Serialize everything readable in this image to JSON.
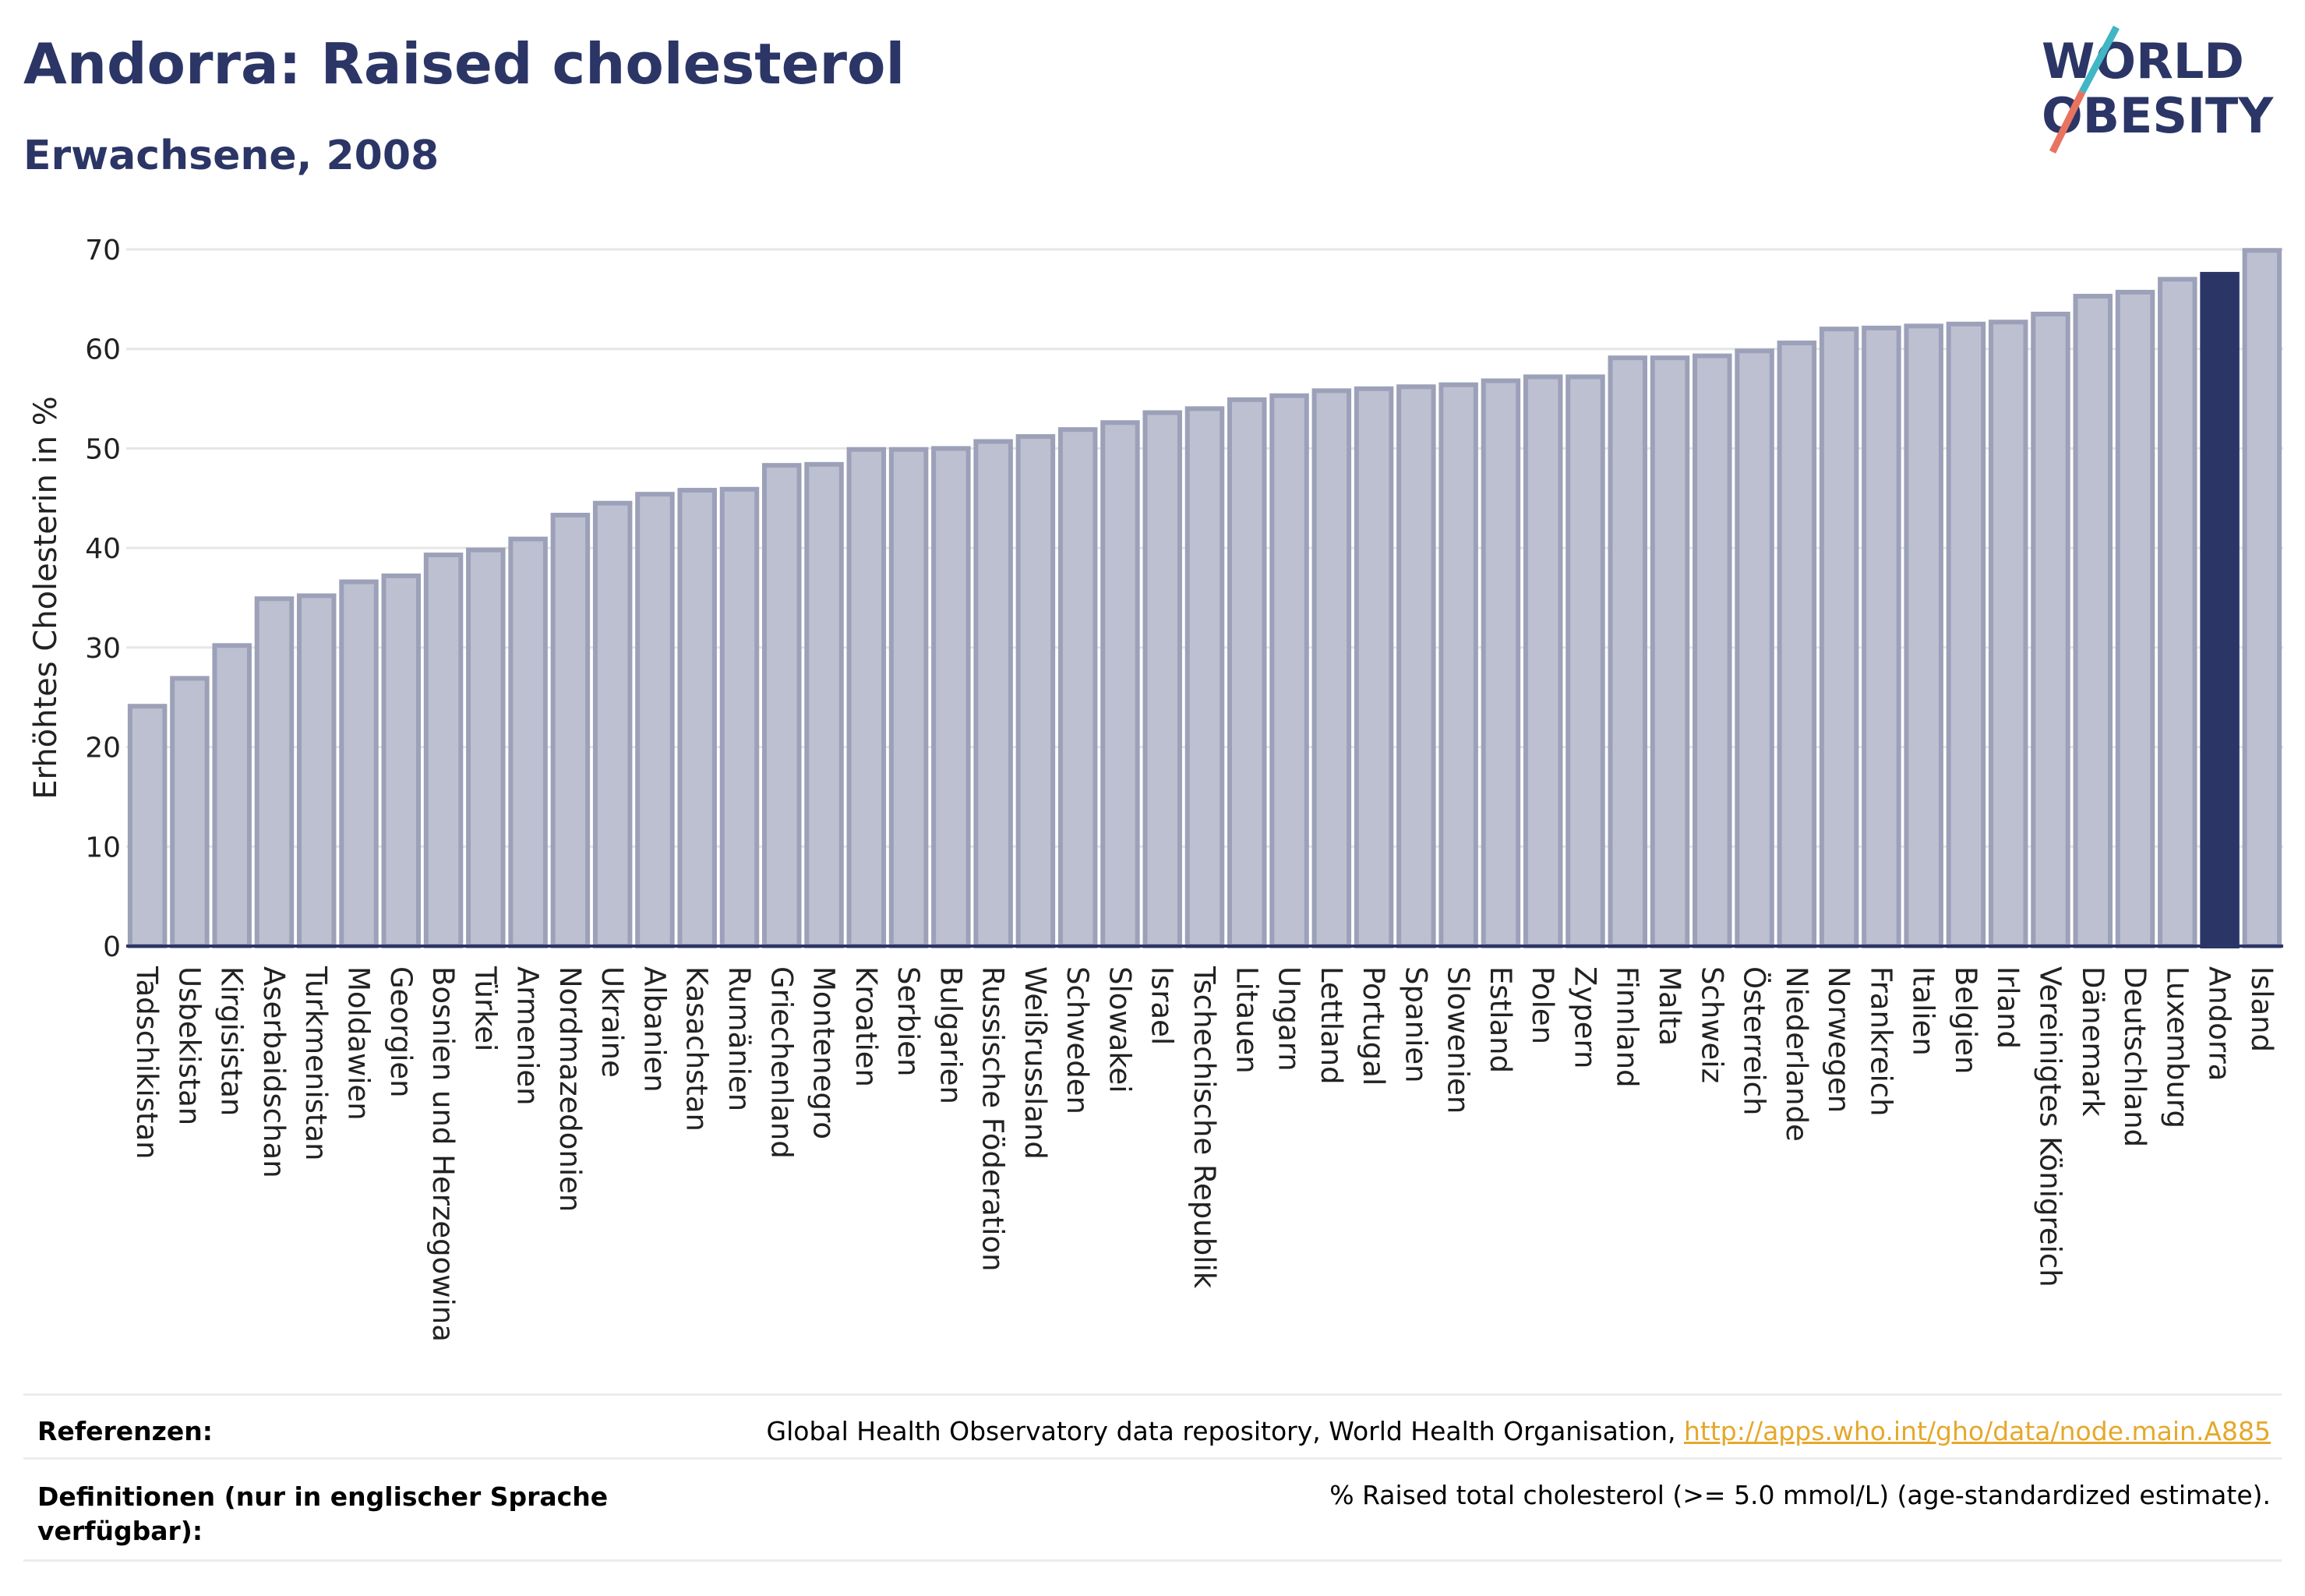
{
  "header": {
    "title": "Andorra: Raised cholesterol",
    "subtitle": "Erwachsene, 2008",
    "logo_line1": "WORLD",
    "logo_line2": "OBESITY"
  },
  "colors": {
    "title": "#2b3566",
    "bar": "#bdc0d0",
    "bar_border": "#9ca1b9",
    "highlight": "#2b3566",
    "link": "#e5a82b",
    "logo_teal": "#41b6c4",
    "logo_coral": "#e8735f"
  },
  "chart_data": {
    "type": "bar",
    "ylabel": "Erhöhtes Cholesterin in %",
    "ylim": [
      0,
      70
    ],
    "yticks": [
      0,
      10,
      20,
      30,
      40,
      50,
      60,
      70
    ],
    "grid": true,
    "highlight": "Andorra",
    "categories": [
      "Tadschikistan",
      "Usbekistan",
      "Kirgisistan",
      "Aserbaidschan",
      "Turkmenistan",
      "Moldawien",
      "Georgien",
      "Bosnien und Herzegowina",
      "Türkei",
      "Armenien",
      "Nordmazedonien",
      "Ukraine",
      "Albanien",
      "Kasachstan",
      "Rumänien",
      "Griechenland",
      "Montenegro",
      "Kroatien",
      "Serbien",
      "Bulgarien",
      "Russische Föderation",
      "Weißrussland",
      "Schweden",
      "Slowakei",
      "Israel",
      "Tschechische Republik",
      "Litauen",
      "Ungarn",
      "Lettland",
      "Portugal",
      "Spanien",
      "Slowenien",
      "Estland",
      "Polen",
      "Zypern",
      "Finnland",
      "Malta",
      "Schweiz",
      "Österreich",
      "Niederlande",
      "Norwegen",
      "Frankreich",
      "Italien",
      "Belgien",
      "Irland",
      "Vereinigtes Königreich",
      "Dänemark",
      "Deutschland",
      "Luxemburg",
      "Andorra",
      "Island"
    ],
    "values": [
      24.1,
      26.9,
      30.2,
      34.9,
      35.2,
      36.6,
      37.2,
      39.3,
      39.8,
      40.9,
      43.3,
      44.5,
      45.4,
      45.8,
      45.9,
      48.3,
      48.4,
      49.9,
      49.9,
      50.0,
      50.7,
      51.2,
      51.9,
      52.6,
      53.6,
      54.0,
      54.9,
      55.3,
      55.8,
      56.0,
      56.2,
      56.4,
      56.8,
      57.2,
      57.2,
      59.1,
      59.1,
      59.3,
      59.8,
      60.6,
      62.0,
      62.1,
      62.3,
      62.5,
      62.7,
      63.5,
      65.3,
      65.7,
      67.0,
      67.5,
      69.9
    ]
  },
  "footer": {
    "references_label": "Referenzen:",
    "references_text": "Global Health Observatory data repository, World Health Organisation, ",
    "references_link": "http://apps.who.int/gho/data/node.main.A885",
    "definitions_label_line1": "Definitionen (nur in englischer Sprache",
    "definitions_label_line2": "verfügbar):",
    "definitions_text": "% Raised total cholesterol (>= 5.0 mmol/L) (age-standardized estimate)."
  }
}
